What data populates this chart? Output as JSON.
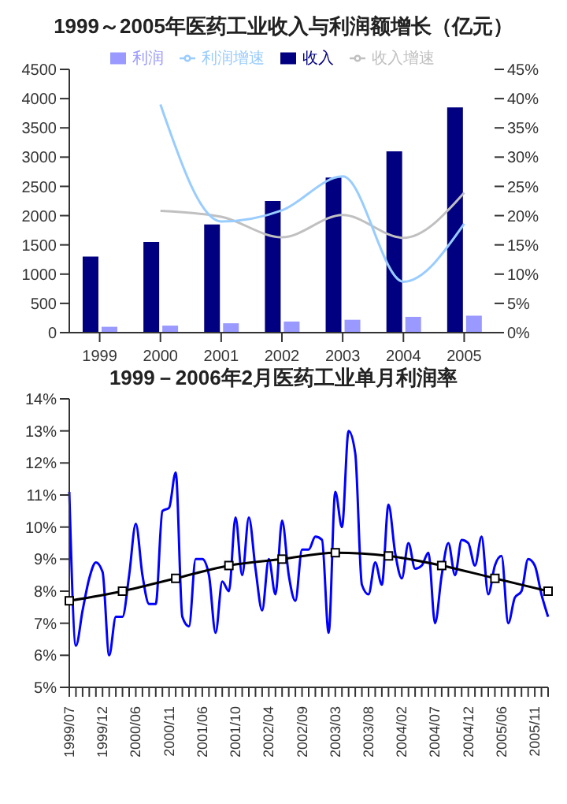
{
  "chart_data": [
    {
      "type": "bar",
      "title": "1999～2005年医药工业收入与利润额增长（亿元）",
      "categories": [
        "1999",
        "2000",
        "2001",
        "2002",
        "2003",
        "2004",
        "2005"
      ],
      "series": [
        {
          "name": "收入",
          "color": "#000080",
          "values": [
            1300,
            1550,
            1850,
            2250,
            2650,
            3100,
            3850
          ]
        },
        {
          "name": "利润",
          "color": "#9999ff",
          "values": [
            100,
            120,
            160,
            190,
            220,
            270,
            290
          ]
        },
        {
          "name": "收入增速",
          "type": "line",
          "axis": "y2",
          "color": "#c0c0c0",
          "values": [
            null,
            20.8,
            19.8,
            16.3,
            20.1,
            16.2,
            23.9
          ]
        },
        {
          "name": "利润增速",
          "type": "line",
          "axis": "y2",
          "color": "#99ccff",
          "values": [
            null,
            39,
            19,
            20.9,
            26.7,
            8.7,
            18.6
          ]
        }
      ],
      "ylim": [
        0,
        4500
      ],
      "yticks": [
        0,
        500,
        1000,
        1500,
        2000,
        2500,
        3000,
        3500,
        4000,
        4500
      ],
      "y2lim": [
        0,
        45
      ],
      "y2ticks": [
        {
          "value": 0,
          "label": "0%"
        },
        {
          "value": 5,
          "label": "5%"
        },
        {
          "value": 10,
          "label": "10%"
        },
        {
          "value": 15,
          "label": "15%"
        },
        {
          "value": 20,
          "label": "20%"
        },
        {
          "value": 25,
          "label": "25%"
        },
        {
          "value": 30,
          "label": "30%"
        },
        {
          "value": 35,
          "label": "35%"
        },
        {
          "value": 40,
          "label": "40%"
        },
        {
          "value": 45,
          "label": "45%"
        }
      ],
      "legend": "top",
      "grid": false
    },
    {
      "type": "line",
      "title": "1999－2006年2月医药工业单月利润率",
      "categories": [
        "1999/07",
        null,
        null,
        null,
        null,
        "1999/12",
        null,
        null,
        null,
        null,
        "2000/06",
        null,
        null,
        null,
        null,
        "2000/11",
        null,
        null,
        null,
        null,
        "2001/06",
        null,
        null,
        null,
        null,
        "2001/10",
        null,
        null,
        null,
        null,
        "2002/04",
        null,
        null,
        null,
        null,
        "2002/09",
        null,
        null,
        null,
        null,
        "2003/03",
        null,
        null,
        null,
        null,
        "2003/08",
        null,
        null,
        null,
        null,
        "2004/02",
        null,
        null,
        null,
        null,
        "2004/07",
        null,
        null,
        null,
        null,
        "2004/12",
        null,
        null,
        null,
        null,
        "2005/06",
        null,
        null,
        null,
        null,
        "2005/11",
        null,
        null
      ],
      "series": [
        {
          "color": "#0000ff",
          "marker": "none",
          "values": [
            11.1,
            6.3,
            7.4,
            8.4,
            8.9,
            8.6,
            6.0,
            7.2,
            7.2,
            8.5,
            10.1,
            8.5,
            7.6,
            7.6,
            10.5,
            10.6,
            11.7,
            7.2,
            6.9,
            9.0,
            9.0,
            8.5,
            6.7,
            8.3,
            8.0,
            10.3,
            8.5,
            10.3,
            8.7,
            7.4,
            9.0,
            7.9,
            10.2,
            8.5,
            7.7,
            9.3,
            9.3,
            9.7,
            9.6,
            6.7,
            11.1,
            10.0,
            13.0,
            12.3,
            8.2,
            7.9,
            8.9,
            8.2,
            10.7,
            9.2,
            8.4,
            9.5,
            8.7,
            8.8,
            9.2,
            7.0,
            8.5,
            9.5,
            8.5,
            9.6,
            9.5,
            8.8,
            9.7,
            7.9,
            8.8,
            9.1,
            7.0,
            7.8,
            8.0,
            9.0,
            8.8,
            7.9,
            7.2
          ]
        },
        {
          "color": "#000000",
          "marker": "square",
          "values": [
            7.7,
            null,
            null,
            null,
            null,
            null,
            null,
            null,
            8.0,
            null,
            null,
            null,
            null,
            null,
            null,
            null,
            8.4,
            null,
            null,
            null,
            null,
            null,
            null,
            null,
            8.8,
            null,
            null,
            null,
            null,
            null,
            null,
            null,
            9.0,
            null,
            null,
            null,
            null,
            null,
            null,
            null,
            9.2,
            null,
            null,
            null,
            null,
            null,
            null,
            null,
            9.1,
            null,
            null,
            null,
            null,
            null,
            null,
            null,
            8.8,
            null,
            null,
            null,
            null,
            null,
            null,
            null,
            8.4,
            null,
            null,
            null,
            null,
            null,
            null,
            null,
            8.0
          ]
        }
      ],
      "ylim": [
        5,
        14
      ],
      "yticks": [
        {
          "value": 5,
          "label": "5%"
        },
        {
          "value": 6,
          "label": "6%"
        },
        {
          "value": 7,
          "label": "7%"
        },
        {
          "value": 8,
          "label": "8%"
        },
        {
          "value": 9,
          "label": "9%"
        },
        {
          "value": 10,
          "label": "10%"
        },
        {
          "value": 11,
          "label": "11%"
        },
        {
          "value": 12,
          "label": "12%"
        },
        {
          "value": 13,
          "label": "13%"
        },
        {
          "value": 14,
          "label": "14%"
        }
      ],
      "grid": false
    }
  ]
}
